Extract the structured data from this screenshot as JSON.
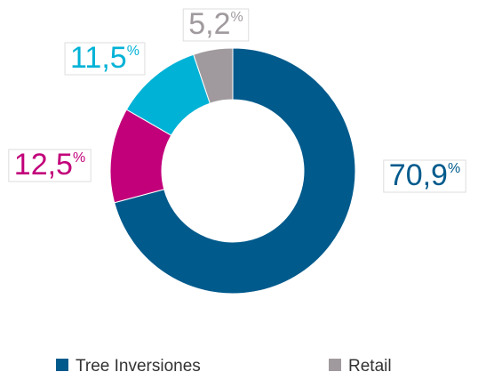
{
  "chart_data": {
    "type": "donut",
    "categories": [
      "Tree Inversiones",
      null,
      null,
      "Retail"
    ],
    "values": [
      70.9,
      12.5,
      11.5,
      5.2
    ],
    "value_labels": [
      "70,9%",
      "12,5%",
      "11,5%",
      "5,2%"
    ],
    "colors": [
      "#005a8c",
      "#c2007a",
      "#00b2d6",
      "#a09a9e"
    ],
    "legend": "bottom"
  }
}
